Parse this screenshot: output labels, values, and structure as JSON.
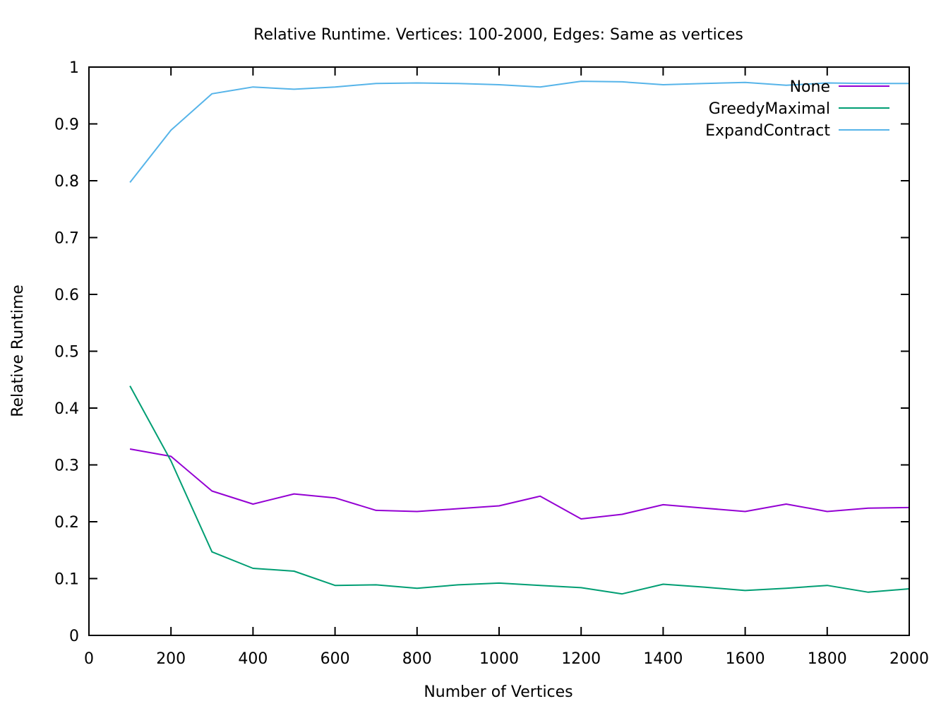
{
  "chart_data": {
    "type": "line",
    "title": "Relative Runtime. Vertices: 100-2000, Edges: Same as vertices",
    "xlabel": "Number of Vertices",
    "ylabel": "Relative Runtime",
    "xlim": [
      0,
      2000
    ],
    "ylim": [
      0,
      1
    ],
    "xticks": [
      "0",
      "200",
      "400",
      "600",
      "800",
      "1000",
      "1200",
      "1400",
      "1600",
      "1800",
      "2000"
    ],
    "yticks": [
      "0",
      "0.1",
      "0.2",
      "0.3",
      "0.4",
      "0.5",
      "0.6",
      "0.7",
      "0.8",
      "0.9",
      "1"
    ],
    "grid": false,
    "legend_position": "top-right",
    "x": [
      100,
      200,
      300,
      400,
      500,
      600,
      700,
      800,
      900,
      1000,
      1100,
      1200,
      1300,
      1400,
      1500,
      1600,
      1700,
      1800,
      1900,
      2000
    ],
    "series": [
      {
        "name": "None",
        "color": "#9400d3",
        "values": [
          0.328,
          0.315,
          0.254,
          0.231,
          0.249,
          0.242,
          0.22,
          0.218,
          0.223,
          0.228,
          0.245,
          0.205,
          0.213,
          0.23,
          0.224,
          0.218,
          0.231,
          0.218,
          0.224,
          0.225
        ]
      },
      {
        "name": "GreedyMaximal",
        "color": "#009e73",
        "values": [
          0.439,
          0.307,
          0.147,
          0.118,
          0.113,
          0.088,
          0.089,
          0.083,
          0.089,
          0.092,
          0.088,
          0.084,
          0.073,
          0.09,
          0.085,
          0.079,
          0.083,
          0.088,
          0.076,
          0.082
        ]
      },
      {
        "name": "ExpandContract",
        "color": "#56b4e9",
        "values": [
          0.797,
          0.889,
          0.953,
          0.965,
          0.961,
          0.965,
          0.971,
          0.972,
          0.971,
          0.969,
          0.965,
          0.975,
          0.974,
          0.969,
          0.971,
          0.973,
          0.968,
          0.972,
          0.971,
          0.971
        ]
      }
    ]
  }
}
